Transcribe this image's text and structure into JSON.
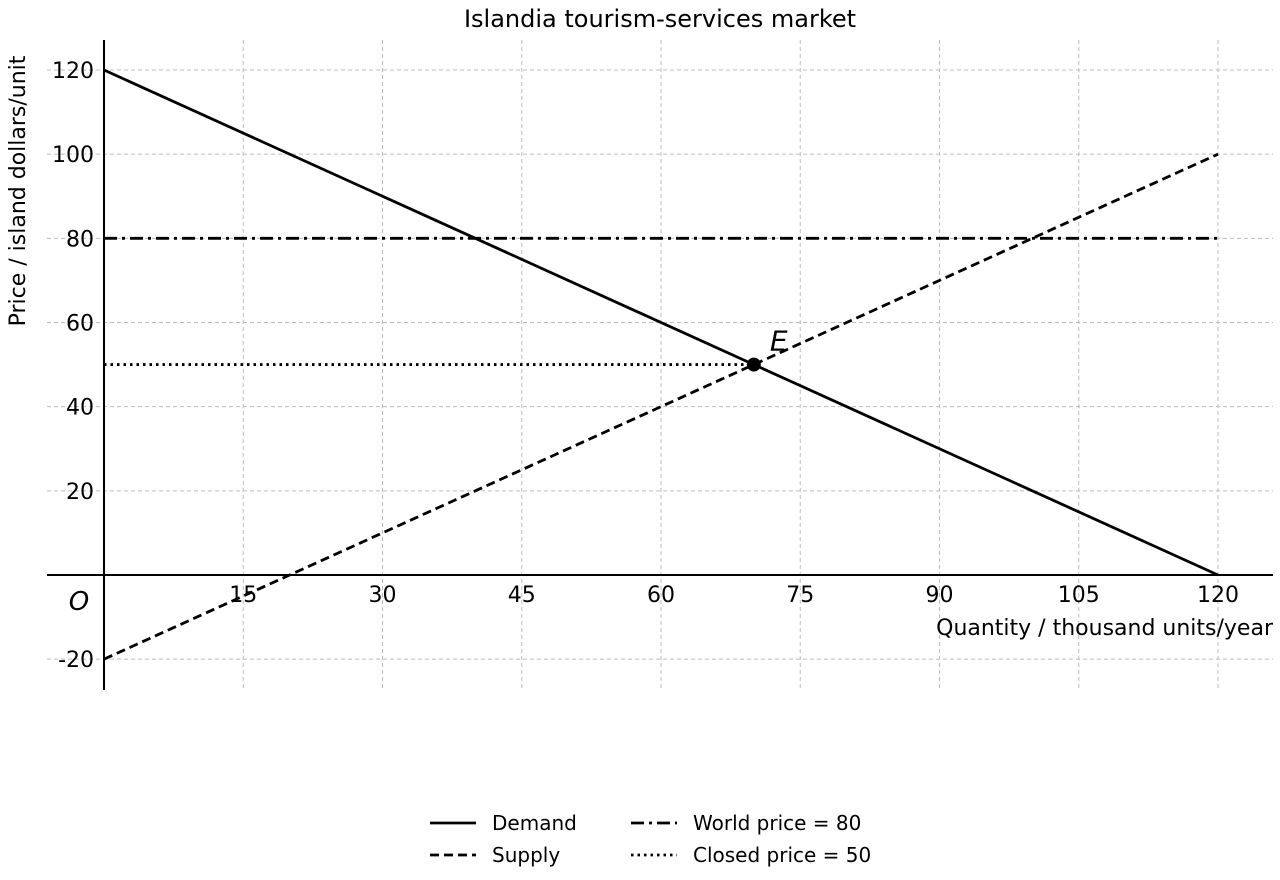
{
  "chart_data": {
    "type": "line",
    "title": "Islandia tourism-services market",
    "xlabel": "Quantity / thousand units/year",
    "ylabel": "Price / island dollars/unit",
    "xlim": [
      0,
      120
    ],
    "ylim": [
      -20,
      120
    ],
    "xticks": [
      15,
      30,
      45,
      60,
      75,
      90,
      105,
      120
    ],
    "yticks": [
      -20,
      20,
      40,
      60,
      80,
      100,
      120
    ],
    "origin_label": "O",
    "grid": true,
    "legend_position": "bottom-center",
    "series": [
      {
        "name": "Demand",
        "style": "solid",
        "x": [
          0,
          120
        ],
        "y": [
          120,
          0
        ]
      },
      {
        "name": "Supply",
        "style": "dashed",
        "x": [
          0,
          120
        ],
        "y": [
          -20,
          100
        ]
      },
      {
        "name": "World price = 80",
        "style": "dashdot",
        "x": [
          0,
          120
        ],
        "y": [
          80,
          80
        ]
      },
      {
        "name": "Closed price = 50",
        "style": "dotted",
        "x": [
          0,
          70
        ],
        "y": [
          50,
          50
        ]
      }
    ],
    "points": [
      {
        "label": "E",
        "x": 70,
        "y": 50
      }
    ]
  }
}
